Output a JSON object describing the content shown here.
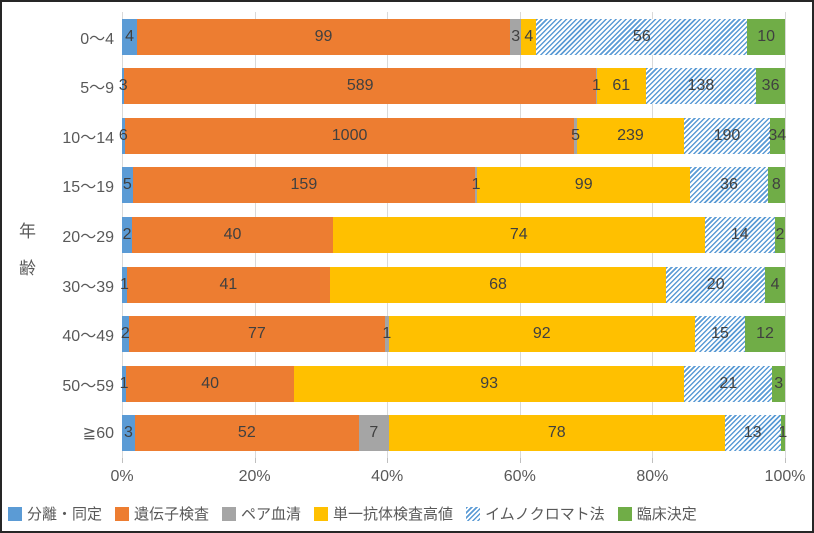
{
  "chart_data": {
    "type": "bar",
    "variant": "100%-stacked-horizontal",
    "title": "",
    "ylabel": "年齢",
    "xlabel": "",
    "grid": true,
    "legend_position": "bottom",
    "categories": [
      "0〜4",
      "5〜9",
      "10〜14",
      "15〜19",
      "20〜29",
      "30〜39",
      "40〜49",
      "50〜59",
      "≧60"
    ],
    "series": [
      {
        "name": "分離・同定",
        "color": "#5B9BD5",
        "pattern": "solid",
        "values": [
          4,
          3,
          6,
          5,
          2,
          1,
          2,
          1,
          3
        ]
      },
      {
        "name": "遺伝子検査",
        "color": "#ED7D31",
        "pattern": "solid",
        "values": [
          99,
          589,
          1000,
          159,
          40,
          41,
          77,
          40,
          52
        ]
      },
      {
        "name": "ペア血清",
        "color": "#A5A5A5",
        "pattern": "solid",
        "values": [
          3,
          1,
          5,
          1,
          0,
          0,
          1,
          0,
          7
        ]
      },
      {
        "name": "単一抗体検査高値",
        "color": "#FFC000",
        "pattern": "solid",
        "values": [
          4,
          61,
          239,
          99,
          74,
          68,
          92,
          93,
          78
        ]
      },
      {
        "name": "イムノクロマト法",
        "color": "#5B9BD5",
        "pattern": "diagonal-hatch",
        "values": [
          56,
          138,
          190,
          36,
          14,
          20,
          15,
          21,
          13
        ]
      },
      {
        "name": "臨床決定",
        "color": "#70AD47",
        "pattern": "solid",
        "values": [
          10,
          36,
          34,
          8,
          2,
          4,
          12,
          3,
          1
        ]
      }
    ],
    "x_axis": {
      "ticks": [
        "0%",
        "20%",
        "40%",
        "60%",
        "80%",
        "100%"
      ],
      "range": [
        0,
        100
      ]
    }
  },
  "colors": {
    "gridline": "#D9D9D9",
    "tick": "#BFBFBF",
    "data_label": "#404040",
    "axis_label": "#595959",
    "border": "#262626",
    "hatch_foreground": "#5B9BD5",
    "hatch_background": "#ffffff"
  }
}
